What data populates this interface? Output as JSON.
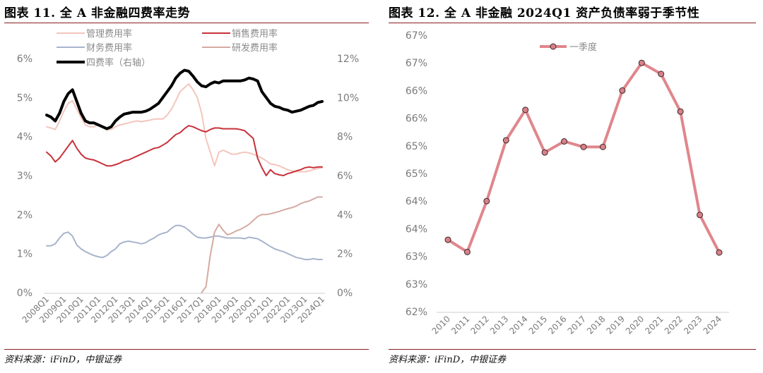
{
  "left": {
    "title": "图表 11. 全 A 非金融四费率走势",
    "source": "资料来源：iFinD，中银证券",
    "chart_data": {
      "type": "line",
      "title": "",
      "x": [
        "2008Q1",
        "2008Q2",
        "2008Q3",
        "2008Q4",
        "2009Q1",
        "2009Q2",
        "2009Q3",
        "2009Q4",
        "2010Q1",
        "2010Q2",
        "2010Q3",
        "2010Q4",
        "2011Q1",
        "2011Q2",
        "2011Q3",
        "2011Q4",
        "2012Q1",
        "2012Q2",
        "2012Q3",
        "2012Q4",
        "2013Q1",
        "2013Q2",
        "2013Q3",
        "2013Q4",
        "2014Q1",
        "2014Q2",
        "2014Q3",
        "2014Q4",
        "2015Q1",
        "2015Q2",
        "2015Q3",
        "2015Q4",
        "2016Q1",
        "2016Q2",
        "2016Q3",
        "2016Q4",
        "2017Q1",
        "2017Q2",
        "2017Q3",
        "2017Q4",
        "2018Q1",
        "2018Q2",
        "2018Q3",
        "2018Q4",
        "2019Q1",
        "2019Q2",
        "2019Q3",
        "2019Q4",
        "2020Q1",
        "2020Q2",
        "2020Q3",
        "2020Q4",
        "2021Q1",
        "2021Q2",
        "2021Q3",
        "2021Q4",
        "2022Q1",
        "2022Q2",
        "2022Q3",
        "2022Q4",
        "2023Q1",
        "2023Q2",
        "2023Q3",
        "2023Q4",
        "2024Q1"
      ],
      "x_tick_labels": [
        "2008Q1",
        "2009Q1",
        "2010Q1",
        "2011Q1",
        "2012Q1",
        "2013Q1",
        "2014Q1",
        "2015Q1",
        "2016Q1",
        "2017Q1",
        "2018Q1",
        "2019Q1",
        "2020Q1",
        "2021Q1",
        "2022Q1",
        "2023Q1",
        "2024Q1"
      ],
      "y_left_ticks": [
        "0%",
        "1%",
        "2%",
        "3%",
        "4%",
        "5%",
        "6%"
      ],
      "y_right_ticks": [
        "0%",
        "2%",
        "4%",
        "6%",
        "8%",
        "10%",
        "12%"
      ],
      "ylim_left": [
        0,
        6
      ],
      "ylim_right": [
        0,
        12
      ],
      "legend_position": "top",
      "series": [
        {
          "name": "管理费用率",
          "axis": "left",
          "color": "#f4c6bd",
          "values": [
            4.25,
            4.22,
            4.18,
            4.4,
            4.65,
            4.85,
            4.92,
            4.7,
            4.48,
            4.3,
            4.25,
            4.25,
            4.3,
            4.25,
            4.18,
            4.18,
            4.25,
            4.3,
            4.32,
            4.35,
            4.38,
            4.4,
            4.38,
            4.4,
            4.42,
            4.45,
            4.45,
            4.45,
            4.55,
            4.7,
            4.92,
            5.15,
            5.25,
            5.35,
            5.2,
            5.0,
            4.6,
            3.95,
            3.6,
            3.25,
            3.6,
            3.65,
            3.6,
            3.55,
            3.55,
            3.58,
            3.6,
            3.58,
            3.55,
            3.5,
            3.45,
            3.38,
            3.3,
            3.28,
            3.25,
            3.2,
            3.15,
            3.12,
            3.1,
            3.1,
            3.1,
            3.12,
            3.15,
            3.18,
            3.2
          ]
        },
        {
          "name": "销售费用率",
          "axis": "left",
          "color": "#c8323a",
          "values": [
            3.6,
            3.5,
            3.35,
            3.45,
            3.6,
            3.75,
            3.9,
            3.7,
            3.55,
            3.45,
            3.42,
            3.4,
            3.35,
            3.3,
            3.25,
            3.25,
            3.28,
            3.32,
            3.38,
            3.4,
            3.45,
            3.5,
            3.55,
            3.6,
            3.65,
            3.7,
            3.72,
            3.78,
            3.85,
            3.95,
            4.05,
            4.1,
            4.2,
            4.28,
            4.25,
            4.2,
            4.15,
            4.12,
            4.18,
            4.22,
            4.22,
            4.2,
            4.2,
            4.2,
            4.2,
            4.18,
            4.15,
            4.05,
            3.95,
            3.45,
            3.2,
            3.0,
            3.15,
            3.05,
            3.02,
            3.0,
            3.05,
            3.08,
            3.12,
            3.15,
            3.2,
            3.22,
            3.2,
            3.22,
            3.22
          ]
        },
        {
          "name": "财务费用率",
          "axis": "left",
          "color": "#a8b4cc",
          "values": [
            1.2,
            1.2,
            1.25,
            1.4,
            1.52,
            1.55,
            1.45,
            1.22,
            1.12,
            1.05,
            1.0,
            0.95,
            0.92,
            0.9,
            0.95,
            1.05,
            1.12,
            1.25,
            1.3,
            1.32,
            1.3,
            1.28,
            1.25,
            1.28,
            1.35,
            1.4,
            1.48,
            1.52,
            1.55,
            1.65,
            1.72,
            1.72,
            1.68,
            1.6,
            1.5,
            1.42,
            1.4,
            1.4,
            1.42,
            1.45,
            1.45,
            1.42,
            1.4,
            1.4,
            1.4,
            1.4,
            1.38,
            1.42,
            1.4,
            1.38,
            1.32,
            1.25,
            1.18,
            1.12,
            1.08,
            1.05,
            1.0,
            0.95,
            0.9,
            0.88,
            0.85,
            0.85,
            0.87,
            0.85,
            0.85
          ]
        },
        {
          "name": "研发费用率",
          "axis": "left",
          "color": "#d4aba2",
          "values": [
            null,
            null,
            null,
            null,
            null,
            null,
            null,
            null,
            null,
            null,
            null,
            null,
            null,
            null,
            null,
            null,
            null,
            null,
            null,
            null,
            null,
            null,
            null,
            null,
            null,
            null,
            null,
            null,
            null,
            null,
            null,
            null,
            null,
            null,
            null,
            null,
            0.0,
            0.15,
            0.95,
            1.55,
            1.75,
            1.6,
            1.48,
            1.52,
            1.58,
            1.62,
            1.68,
            1.75,
            1.85,
            1.95,
            2.0,
            2.0,
            2.02,
            2.05,
            2.08,
            2.12,
            2.15,
            2.18,
            2.22,
            2.28,
            2.32,
            2.35,
            2.4,
            2.45,
            2.45
          ]
        },
        {
          "name": "四费率（右轴）",
          "axis": "right",
          "color": "#000000",
          "values": [
            9.1,
            9.0,
            8.8,
            9.2,
            9.8,
            10.2,
            10.4,
            9.8,
            9.2,
            8.8,
            8.7,
            8.7,
            8.6,
            8.5,
            8.4,
            8.5,
            8.8,
            9.0,
            9.15,
            9.2,
            9.25,
            9.25,
            9.25,
            9.3,
            9.4,
            9.55,
            9.7,
            10.0,
            10.3,
            10.6,
            11.0,
            11.25,
            11.4,
            11.35,
            11.1,
            10.8,
            10.6,
            10.55,
            10.7,
            10.8,
            10.75,
            10.85,
            10.85,
            10.85,
            10.85,
            10.85,
            10.9,
            11.0,
            10.95,
            10.85,
            10.3,
            10.0,
            9.7,
            9.55,
            9.5,
            9.4,
            9.35,
            9.25,
            9.3,
            9.35,
            9.45,
            9.55,
            9.6,
            9.75,
            9.8
          ]
        }
      ]
    }
  },
  "right": {
    "title": "图表 12. 全 A 非金融 2024Q1 资产负债率弱于季节性",
    "source": "资料来源：iFinD，中银证券",
    "chart_data": {
      "type": "line",
      "title": "",
      "x": [
        "2010",
        "2011",
        "2012",
        "2013",
        "2014",
        "2015",
        "2016",
        "2017",
        "2018",
        "2019",
        "2020",
        "2021",
        "2022",
        "2023",
        "2024"
      ],
      "y_tick_labels": [
        "62%",
        "63%",
        "63%",
        "64%",
        "64%",
        "65%",
        "65%",
        "66%",
        "66%",
        "67%",
        "67%"
      ],
      "ylim": [
        62.0,
        67.0
      ],
      "legend_position": "top-left",
      "series": [
        {
          "name": "一季度",
          "color": "#e0868c",
          "marker_color": "#d98088",
          "values": [
            63.3,
            63.08,
            64.0,
            65.1,
            65.65,
            64.88,
            65.08,
            64.98,
            64.98,
            66.0,
            66.5,
            66.3,
            65.62,
            63.75,
            63.07
          ]
        }
      ]
    }
  }
}
